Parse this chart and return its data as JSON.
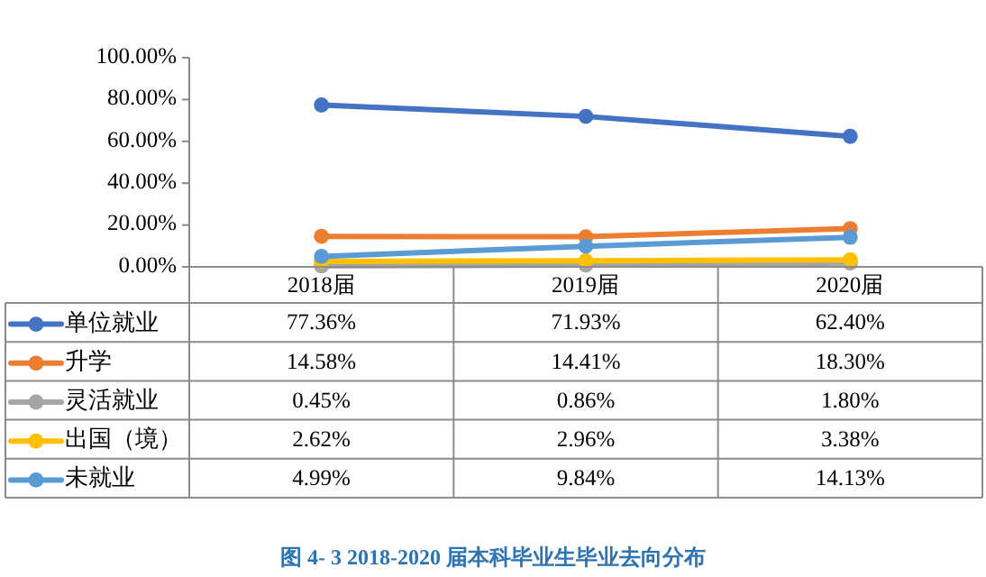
{
  "chart_data": {
    "type": "line",
    "title": "图 4- 3    2018-2020 届本科毕业生毕业去向分布",
    "categories": [
      "2018届",
      "2019届",
      "2020届"
    ],
    "ylim": [
      0,
      100
    ],
    "yticks": [
      {
        "value": 0,
        "label": "0.00%"
      },
      {
        "value": 20,
        "label": "20.00%"
      },
      {
        "value": 40,
        "label": "40.00%"
      },
      {
        "value": 60,
        "label": "60.00%"
      },
      {
        "value": 80,
        "label": "80.00%"
      },
      {
        "value": 100,
        "label": "100.00%"
      }
    ],
    "grid": false,
    "legend": "bottom left",
    "marker": "circle",
    "line_style": "solid",
    "series": [
      {
        "name": "单位就业",
        "color": "#4472c4",
        "values": [
          77.36,
          71.93,
          62.4
        ],
        "value_labels": [
          "77.36%",
          "71.93%",
          "62.40%"
        ]
      },
      {
        "name": "升学",
        "color": "#ed7d31",
        "values": [
          14.58,
          14.41,
          18.3
        ],
        "value_labels": [
          "14.58%",
          "14.41%",
          "18.30%"
        ]
      },
      {
        "name": "灵活就业",
        "color": "#a5a5a5",
        "values": [
          0.45,
          0.86,
          1.8
        ],
        "value_labels": [
          "0.45%",
          "0.86%",
          "1.80%"
        ]
      },
      {
        "name": "出国（境）",
        "color": "#ffc000",
        "values": [
          2.62,
          2.96,
          3.38
        ],
        "value_labels": [
          "2.62%",
          "2.96%",
          "3.38%"
        ]
      },
      {
        "name": "未就业",
        "color": "#5b9bd5",
        "values": [
          4.99,
          9.84,
          14.13
        ],
        "value_labels": [
          "4.99%",
          "9.84%",
          "14.13%"
        ]
      }
    ]
  }
}
